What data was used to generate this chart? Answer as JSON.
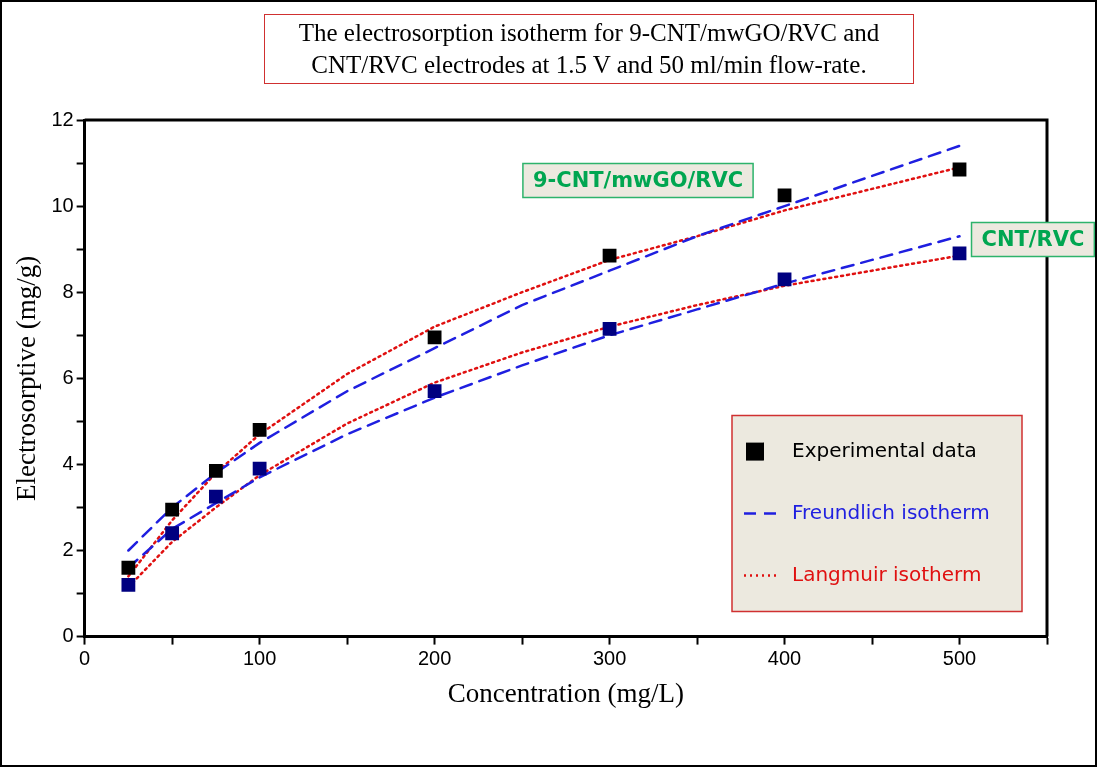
{
  "chart_data": {
    "type": "scatter",
    "title": "The electrosorption isotherm for 9-CNT/mwGO/RVC and CNT/RVC electrodes  at 1.5 V and 50 ml/min flow-rate.",
    "xlabel": "Concentration (mg/L)",
    "ylabel": "Electrosorptive (mg/g)",
    "xlim": [
      0,
      550
    ],
    "ylim": [
      0,
      12
    ],
    "xticks": [
      0,
      {
        "value": 50,
        "label": null
      },
      100,
      {
        "value": 150,
        "label": null
      },
      200,
      {
        "value": 250,
        "label": null
      },
      300,
      {
        "value": 350,
        "label": null
      },
      400,
      {
        "value": 450,
        "label": null
      },
      500,
      {
        "value": 550,
        "label": null
      }
    ],
    "yticks": [
      0,
      {
        "value": 1,
        "label": null
      },
      2,
      {
        "value": 3,
        "label": null
      },
      4,
      {
        "value": 5,
        "label": null
      },
      6,
      {
        "value": 7,
        "label": null
      },
      8,
      {
        "value": 9,
        "label": null
      },
      10,
      {
        "value": 11,
        "label": null
      },
      12
    ],
    "grid": false,
    "legend": "bottom right",
    "series": [
      {
        "name": "Experimental data",
        "type": "scatter",
        "marker": "square",
        "color": "#000000",
        "x": [
          25,
          50,
          75,
          100,
          200,
          300,
          400,
          500
        ],
        "values": [
          1.6,
          2.95,
          3.85,
          4.8,
          6.95,
          8.85,
          10.25,
          10.85
        ]
      },
      {
        "type": "scatter",
        "marker": "square",
        "color": "#000080",
        "x": [
          25,
          50,
          75,
          100,
          200,
          300,
          400,
          500
        ],
        "values": [
          1.2,
          2.4,
          3.25,
          3.9,
          5.7,
          7.15,
          8.3,
          8.9
        ]
      },
      {
        "name": "Freundlich isotherm",
        "type": "line",
        "marker": "none",
        "line_style": "dashed",
        "color": "#1f1fe0",
        "x": [
          25,
          50,
          75,
          100,
          150,
          200,
          250,
          300,
          350,
          400,
          450,
          500
        ],
        "values": [
          2.0,
          3.0,
          3.8,
          4.5,
          5.7,
          6.7,
          7.7,
          8.5,
          9.3,
          10.0,
          10.7,
          11.4
        ]
      },
      {
        "type": "line",
        "marker": "none",
        "line_style": "dashed",
        "color": "#1f1fe0",
        "x": [
          25,
          50,
          75,
          100,
          150,
          200,
          250,
          300,
          350,
          400,
          450,
          500
        ],
        "values": [
          1.6,
          2.5,
          3.1,
          3.7,
          4.7,
          5.55,
          6.3,
          7.0,
          7.6,
          8.2,
          8.75,
          9.3
        ]
      },
      {
        "name": "Langmuir isotherm",
        "type": "line",
        "marker": "none",
        "line_style": "dotted",
        "color": "#e01010",
        "x": [
          25,
          50,
          75,
          100,
          150,
          200,
          250,
          300,
          350,
          400,
          450,
          500
        ],
        "values": [
          1.4,
          2.7,
          3.8,
          4.7,
          6.1,
          7.2,
          8.0,
          8.75,
          9.3,
          9.9,
          10.4,
          10.9
        ]
      },
      {
        "type": "line",
        "marker": "none",
        "line_style": "dotted",
        "color": "#e01010",
        "x": [
          25,
          50,
          75,
          100,
          150,
          200,
          250,
          300,
          350,
          400,
          450,
          500
        ],
        "values": [
          1.15,
          2.2,
          3.0,
          3.75,
          4.95,
          5.9,
          6.6,
          7.2,
          7.7,
          8.15,
          8.5,
          8.85
        ]
      }
    ],
    "annotations": [
      "9-CNT/mwGO/RVC",
      {
        "text": "CNT/RVC",
        "x": 500,
        "y": 8.9
      }
    ]
  }
}
